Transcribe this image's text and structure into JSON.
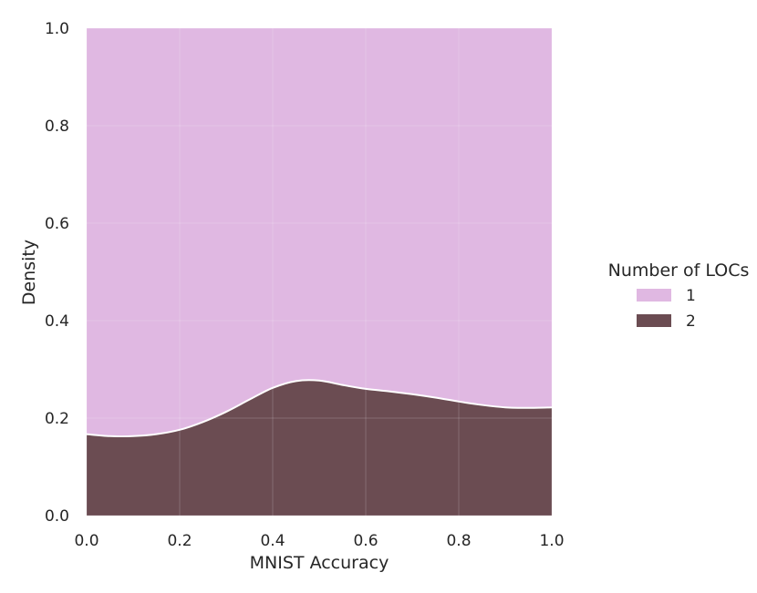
{
  "chart_data": {
    "type": "area",
    "stacked": true,
    "normalized": true,
    "xlabel": "MNIST Accuracy",
    "ylabel": "Density",
    "xlim": [
      0.0,
      1.0
    ],
    "ylim": [
      0.0,
      1.0
    ],
    "xticks": [
      "0.0",
      "0.2",
      "0.4",
      "0.6",
      "0.8",
      "1.0"
    ],
    "yticks": [
      "0.0",
      "0.2",
      "0.4",
      "0.6",
      "0.8",
      "1.0"
    ],
    "grid": true,
    "legend": {
      "title": "Number of LOCs",
      "placement": "right"
    },
    "x": [
      0.0,
      0.05,
      0.1,
      0.15,
      0.2,
      0.25,
      0.3,
      0.35,
      0.4,
      0.45,
      0.5,
      0.55,
      0.6,
      0.65,
      0.7,
      0.75,
      0.8,
      0.85,
      0.9,
      0.95,
      1.0
    ],
    "series": [
      {
        "name": "2",
        "color": "#6b4c52",
        "values": [
          0.167,
          0.163,
          0.163,
          0.167,
          0.176,
          0.192,
          0.213,
          0.238,
          0.262,
          0.276,
          0.277,
          0.268,
          0.26,
          0.255,
          0.249,
          0.242,
          0.234,
          0.227,
          0.222,
          0.221,
          0.222
        ]
      },
      {
        "name": "1",
        "color": "#e0b8e2",
        "values": [
          0.833,
          0.837,
          0.837,
          0.833,
          0.824,
          0.808,
          0.787,
          0.762,
          0.738,
          0.724,
          0.723,
          0.732,
          0.74,
          0.745,
          0.751,
          0.758,
          0.766,
          0.773,
          0.778,
          0.779,
          0.778
        ]
      }
    ]
  }
}
